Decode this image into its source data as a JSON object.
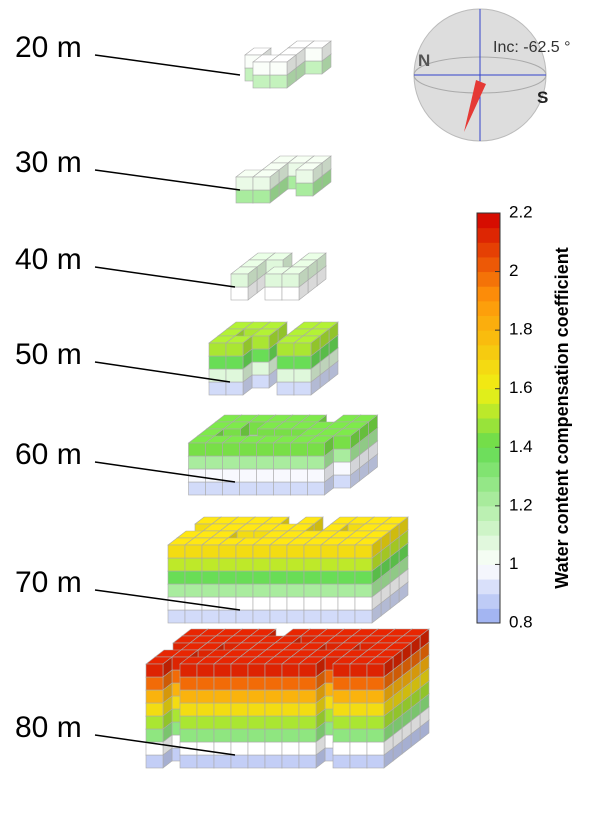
{
  "layers": [
    {
      "label": "20 m"
    },
    {
      "label": "30 m"
    },
    {
      "label": "40 m"
    },
    {
      "label": "50 m"
    },
    {
      "label": "60 m"
    },
    {
      "label": "70 m"
    },
    {
      "label": "80 m"
    }
  ],
  "colorbar": {
    "title": "Water content compensation coefficient",
    "ylim": [
      0.8,
      2.2
    ],
    "ticks": [
      0.8,
      1,
      1.2,
      1.4,
      1.6,
      1.8,
      2,
      2.2
    ]
  },
  "compass": {
    "north": "N",
    "south": "S",
    "inclination": "Inc: -62.5 °"
  }
}
